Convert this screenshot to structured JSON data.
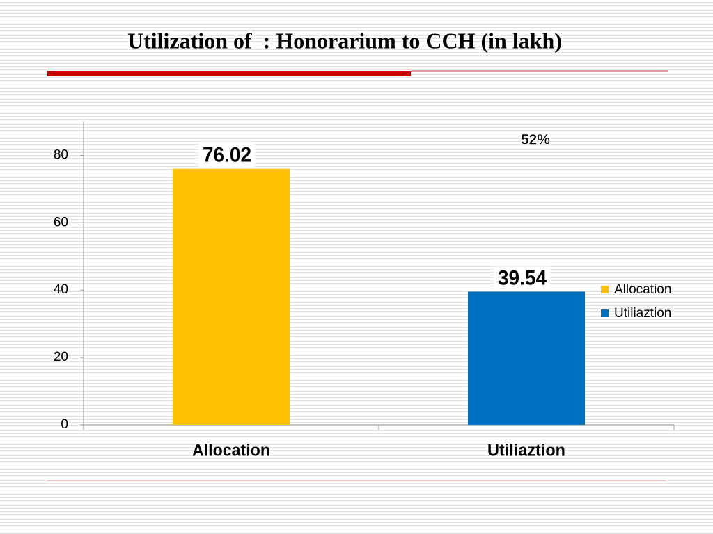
{
  "chart_data": {
    "type": "bar",
    "title": "Utilization of  : Honorarium to CCH (in lakh)",
    "categories": [
      "Allocation",
      "Utiliaztion"
    ],
    "series": [
      {
        "name": "Allocation",
        "color": "#FFC000",
        "values": [
          76.02,
          null
        ]
      },
      {
        "name": "Utiliaztion",
        "color": "#0070C0",
        "values": [
          null,
          39.54
        ]
      }
    ],
    "ylim": [
      0,
      90
    ],
    "yticks": [
      0,
      20,
      40,
      60,
      80
    ],
    "annotation": "52%",
    "legend": "right"
  }
}
